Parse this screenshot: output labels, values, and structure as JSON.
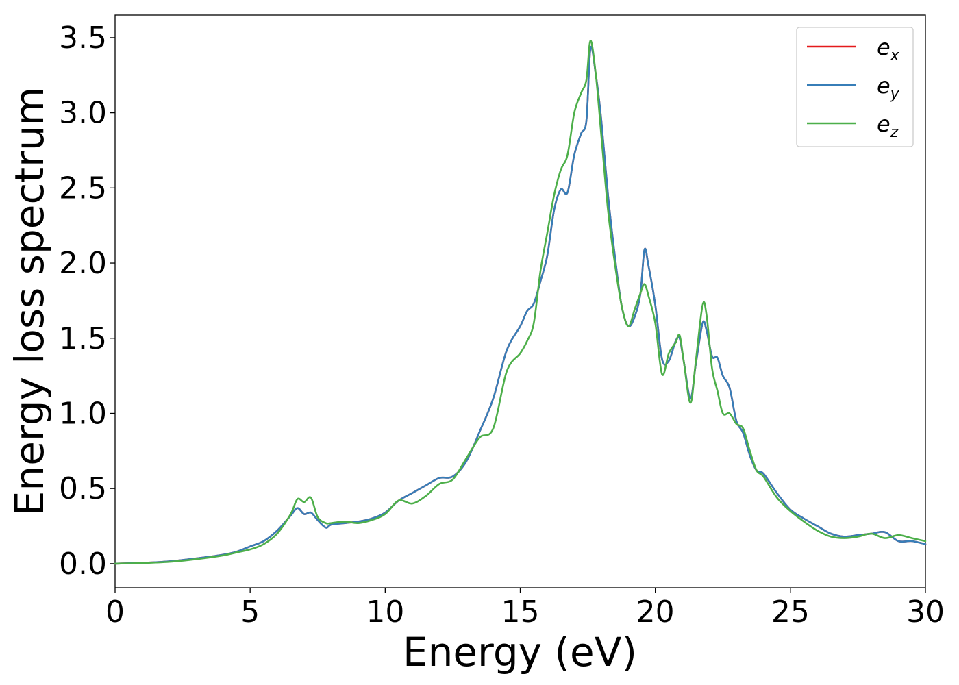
{
  "chart_data": {
    "type": "line",
    "title": "",
    "xlabel": "Energy (eV)",
    "ylabel": "Energy loss spectrum",
    "xlim": [
      0,
      30
    ],
    "ylim": [
      -0.16,
      3.65
    ],
    "xticks": [
      0,
      5,
      10,
      15,
      20,
      25,
      30
    ],
    "xtick_labels": [
      "0",
      "5",
      "10",
      "15",
      "20",
      "25",
      "30"
    ],
    "yticks": [
      0.0,
      0.5,
      1.0,
      1.5,
      2.0,
      2.5,
      3.0,
      3.5
    ],
    "ytick_labels": [
      "0.0",
      "0.5",
      "1.0",
      "1.5",
      "2.0",
      "2.5",
      "3.0",
      "3.5"
    ],
    "grid": false,
    "legend_position": "top-right",
    "legend": [
      {
        "base": "e",
        "sub": "x",
        "color": "#e41a1c"
      },
      {
        "base": "e",
        "sub": "y",
        "color": "#377eb8"
      },
      {
        "base": "e",
        "sub": "z",
        "color": "#4daf4a"
      }
    ],
    "x": [
      0,
      1,
      2,
      3,
      4,
      4.5,
      5,
      5.5,
      6,
      6.5,
      6.75,
      7,
      7.25,
      7.5,
      7.8,
      8,
      8.5,
      9,
      9.5,
      10,
      10.5,
      11,
      11.5,
      12,
      12.5,
      13,
      13.5,
      14,
      14.5,
      15,
      15.25,
      15.5,
      15.75,
      16,
      16.25,
      16.5,
      16.75,
      17,
      17.25,
      17.45,
      17.6,
      17.8,
      18,
      18.25,
      18.5,
      18.75,
      19,
      19.25,
      19.45,
      19.6,
      19.75,
      20,
      20.25,
      20.5,
      20.75,
      20.9,
      21.05,
      21.3,
      21.5,
      21.75,
      21.9,
      22.1,
      22.3,
      22.5,
      22.75,
      23,
      23.25,
      23.5,
      23.75,
      24,
      24.5,
      25,
      25.5,
      26,
      26.5,
      27,
      27.5,
      28,
      28.5,
      29,
      29.5,
      30
    ],
    "series": [
      {
        "name": "e_x",
        "color": "#e41a1c",
        "values": [
          0.0,
          0.005,
          0.015,
          0.035,
          0.06,
          0.08,
          0.115,
          0.15,
          0.22,
          0.32,
          0.37,
          0.33,
          0.34,
          0.29,
          0.24,
          0.26,
          0.27,
          0.28,
          0.3,
          0.34,
          0.42,
          0.47,
          0.52,
          0.57,
          0.58,
          0.68,
          0.88,
          1.1,
          1.42,
          1.58,
          1.68,
          1.73,
          1.88,
          2.05,
          2.35,
          2.49,
          2.47,
          2.72,
          2.86,
          2.95,
          3.43,
          3.25,
          2.95,
          2.45,
          2.05,
          1.72,
          1.58,
          1.65,
          1.8,
          2.09,
          1.98,
          1.72,
          1.36,
          1.35,
          1.48,
          1.5,
          1.35,
          1.1,
          1.33,
          1.6,
          1.55,
          1.38,
          1.37,
          1.25,
          1.17,
          0.95,
          0.87,
          0.72,
          0.62,
          0.6,
          0.47,
          0.36,
          0.3,
          0.25,
          0.2,
          0.18,
          0.19,
          0.2,
          0.21,
          0.15,
          0.15,
          0.13
        ]
      },
      {
        "name": "e_y",
        "color": "#377eb8",
        "values": [
          0.0,
          0.005,
          0.015,
          0.035,
          0.06,
          0.08,
          0.115,
          0.15,
          0.22,
          0.32,
          0.37,
          0.33,
          0.34,
          0.29,
          0.24,
          0.26,
          0.27,
          0.28,
          0.3,
          0.34,
          0.42,
          0.47,
          0.52,
          0.57,
          0.58,
          0.68,
          0.88,
          1.1,
          1.42,
          1.58,
          1.68,
          1.73,
          1.88,
          2.05,
          2.35,
          2.49,
          2.47,
          2.72,
          2.86,
          2.95,
          3.43,
          3.25,
          2.95,
          2.45,
          2.05,
          1.72,
          1.58,
          1.65,
          1.8,
          2.09,
          1.98,
          1.72,
          1.36,
          1.35,
          1.48,
          1.5,
          1.35,
          1.1,
          1.33,
          1.6,
          1.55,
          1.38,
          1.37,
          1.25,
          1.17,
          0.95,
          0.87,
          0.72,
          0.62,
          0.6,
          0.47,
          0.36,
          0.3,
          0.25,
          0.2,
          0.18,
          0.19,
          0.2,
          0.21,
          0.15,
          0.15,
          0.13
        ]
      },
      {
        "name": "e_z",
        "color": "#4daf4a",
        "values": [
          0.0,
          0.004,
          0.012,
          0.03,
          0.055,
          0.075,
          0.095,
          0.13,
          0.2,
          0.33,
          0.43,
          0.41,
          0.44,
          0.31,
          0.27,
          0.27,
          0.28,
          0.27,
          0.29,
          0.33,
          0.42,
          0.4,
          0.45,
          0.53,
          0.56,
          0.7,
          0.84,
          0.9,
          1.28,
          1.4,
          1.48,
          1.6,
          1.95,
          2.2,
          2.45,
          2.62,
          2.72,
          3.0,
          3.13,
          3.22,
          3.48,
          3.25,
          2.85,
          2.35,
          2.0,
          1.72,
          1.58,
          1.7,
          1.8,
          1.86,
          1.78,
          1.6,
          1.26,
          1.4,
          1.47,
          1.52,
          1.35,
          1.07,
          1.35,
          1.72,
          1.65,
          1.3,
          1.15,
          1.0,
          1.0,
          0.93,
          0.9,
          0.75,
          0.62,
          0.58,
          0.44,
          0.35,
          0.28,
          0.22,
          0.18,
          0.17,
          0.18,
          0.2,
          0.17,
          0.19,
          0.17,
          0.15
        ]
      }
    ]
  }
}
